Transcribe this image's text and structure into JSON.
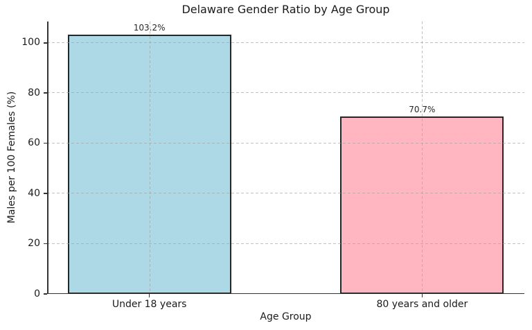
{
  "chart_data": {
    "type": "bar",
    "title": "Delaware Gender Ratio by Age Group",
    "xlabel": "Age Group",
    "ylabel": "Males per 100 Females (%)",
    "categories": [
      "Under 18 years",
      "80 years and older"
    ],
    "values": [
      103.2,
      70.7
    ],
    "bar_labels": [
      "103.2%",
      "70.7%"
    ],
    "colors": [
      "#ADD8E6",
      "#FFB6C1"
    ],
    "edge_color": "#262626",
    "yticks": [
      0,
      20,
      40,
      60,
      80,
      100
    ],
    "ylim": [
      0,
      108.5
    ],
    "xlim": [
      -0.375,
      1.375
    ],
    "bar_width": 0.6,
    "grid": "both-axes dashed, drawn above bars",
    "grid_color": "#cccccc",
    "legend": "none"
  }
}
